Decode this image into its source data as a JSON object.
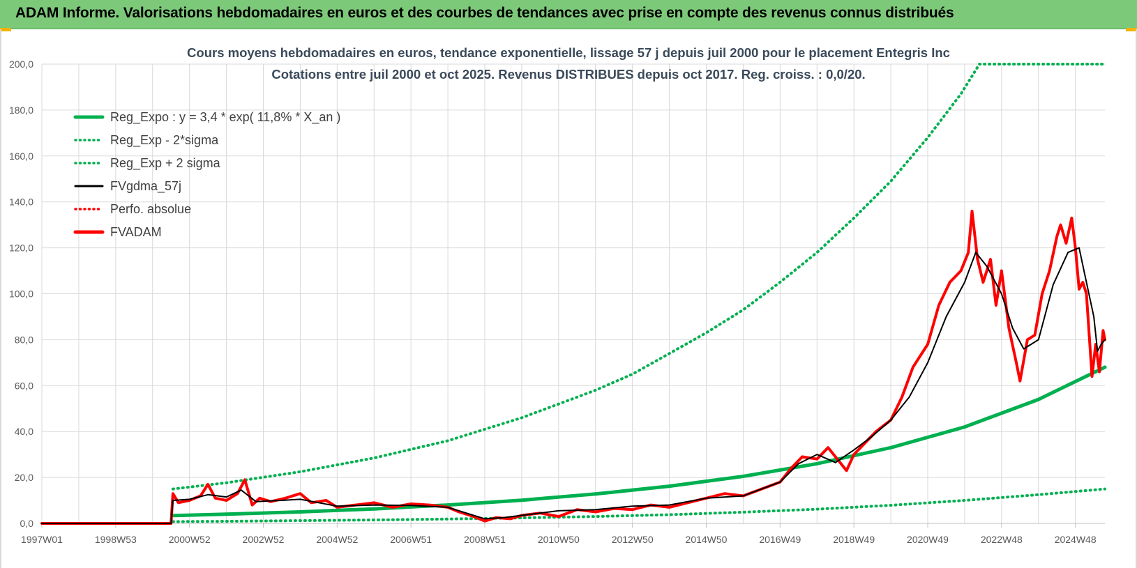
{
  "header": {
    "title": "ADAM Informe. Valorisations hebdomadaires en euros et des courbes de tendances avec prise en compte des revenus connus distribués"
  },
  "colors": {
    "banner": "#7dc97a",
    "reg_green": "#00b050",
    "price_red": "#ff0000",
    "avg_black": "#000000",
    "grid": "#d9d9d9",
    "corner_accent": "#f2b200"
  },
  "chart_data": {
    "type": "line",
    "title": "Cours moyens hebdomadaires en euros, tendance exponentielle, lissage 57 j depuis juil 2000 pour le placement Entegris Inc",
    "subtitle": "Cotations entre juil 2000 et oct 2025. Revenus DISTRIBUES depuis oct 2017. Reg. croiss. : 0,0/20.",
    "xlabel": "",
    "ylabel": "",
    "ylim": [
      0,
      200
    ],
    "yticks": [
      "0,0",
      "20,0",
      "40,0",
      "60,0",
      "80,0",
      "100,0",
      "120,0",
      "140,0",
      "160,0",
      "180,0",
      "200,0"
    ],
    "xlim": [
      1997.0,
      2025.8
    ],
    "xticks": [
      {
        "label": "1997W01",
        "x": 1997.0
      },
      {
        "label": "1998W53",
        "x": 1999.0
      },
      {
        "label": "2000W52",
        "x": 2001.0
      },
      {
        "label": "2002W52",
        "x": 2003.0
      },
      {
        "label": "2004W52",
        "x": 2005.0
      },
      {
        "label": "2006W51",
        "x": 2007.0
      },
      {
        "label": "2008W51",
        "x": 2009.0
      },
      {
        "label": "2010W50",
        "x": 2011.0
      },
      {
        "label": "2012W50",
        "x": 2013.0
      },
      {
        "label": "2014W50",
        "x": 2015.0
      },
      {
        "label": "2016W49",
        "x": 2017.0
      },
      {
        "label": "2018W49",
        "x": 2019.0
      },
      {
        "label": "2020W49",
        "x": 2021.0
      },
      {
        "label": "2022W48",
        "x": 2023.0
      },
      {
        "label": "2024W48",
        "x": 2025.0
      }
    ],
    "grid": true,
    "legend_position": "top-left",
    "series": [
      {
        "name": "Reg_Expo : y = 3,4 * exp( 11,8% *  X_an )",
        "style": "solid-thick",
        "color": "#00b050",
        "points": [
          [
            2000.55,
            3.4
          ],
          [
            2002.0,
            4.0
          ],
          [
            2004.0,
            5.0
          ],
          [
            2006.0,
            6.3
          ],
          [
            2008.0,
            8.0
          ],
          [
            2010.0,
            10.1
          ],
          [
            2012.0,
            12.8
          ],
          [
            2014.0,
            16.2
          ],
          [
            2016.0,
            20.5
          ],
          [
            2018.0,
            26.0
          ],
          [
            2020.0,
            33.0
          ],
          [
            2022.0,
            42.0
          ],
          [
            2024.0,
            54.0
          ],
          [
            2025.8,
            68.0
          ]
        ]
      },
      {
        "name": "Reg_Exp - 2*sigma",
        "style": "dotted",
        "color": "#00b050",
        "points": [
          [
            2000.55,
            0.8
          ],
          [
            2002.0,
            0.9
          ],
          [
            2004.0,
            1.2
          ],
          [
            2006.0,
            1.5
          ],
          [
            2008.0,
            1.9
          ],
          [
            2010.0,
            2.4
          ],
          [
            2012.0,
            3.0
          ],
          [
            2014.0,
            3.8
          ],
          [
            2016.0,
            4.9
          ],
          [
            2018.0,
            6.2
          ],
          [
            2020.0,
            7.9
          ],
          [
            2022.0,
            10.0
          ],
          [
            2024.0,
            12.5
          ],
          [
            2025.8,
            15.0
          ]
        ]
      },
      {
        "name": "Reg_Exp + 2 sigma",
        "style": "dotted",
        "color": "#00b050",
        "points": [
          [
            2000.55,
            15.0
          ],
          [
            2002.0,
            17.7
          ],
          [
            2004.0,
            22.5
          ],
          [
            2006.0,
            28.5
          ],
          [
            2008.0,
            36.0
          ],
          [
            2009.0,
            41.0
          ],
          [
            2010.0,
            46.0
          ],
          [
            2011.0,
            52.0
          ],
          [
            2012.0,
            58.0
          ],
          [
            2013.0,
            65.0
          ],
          [
            2014.0,
            74.0
          ],
          [
            2015.0,
            83.0
          ],
          [
            2016.0,
            93.0
          ],
          [
            2017.0,
            105.0
          ],
          [
            2018.0,
            118.0
          ],
          [
            2019.0,
            133.0
          ],
          [
            2020.0,
            149.0
          ],
          [
            2021.0,
            168.0
          ],
          [
            2021.9,
            187.0
          ],
          [
            2022.4,
            200.0
          ],
          [
            2025.8,
            200.0
          ]
        ]
      },
      {
        "name": "FVgdma_57j",
        "style": "solid",
        "color": "#000000",
        "points": [
          [
            1997.0,
            0.0
          ],
          [
            2000.5,
            0.0
          ],
          [
            2000.55,
            10.0
          ],
          [
            2001.0,
            10.5
          ],
          [
            2001.5,
            12.5
          ],
          [
            2002.0,
            11.5
          ],
          [
            2002.4,
            14.5
          ],
          [
            2002.8,
            9.5
          ],
          [
            2003.5,
            10.0
          ],
          [
            2004.0,
            10.5
          ],
          [
            2004.5,
            9.0
          ],
          [
            2005.0,
            7.5
          ],
          [
            2006.0,
            8.0
          ],
          [
            2007.0,
            7.8
          ],
          [
            2008.0,
            7.0
          ],
          [
            2008.5,
            4.5
          ],
          [
            2009.0,
            2.0
          ],
          [
            2009.5,
            2.5
          ],
          [
            2010.0,
            3.5
          ],
          [
            2011.0,
            5.5
          ],
          [
            2012.0,
            6.0
          ],
          [
            2013.0,
            7.5
          ],
          [
            2014.0,
            8.0
          ],
          [
            2015.0,
            11.0
          ],
          [
            2016.0,
            12.0
          ],
          [
            2017.0,
            18.0
          ],
          [
            2017.5,
            26.0
          ],
          [
            2018.0,
            30.0
          ],
          [
            2018.5,
            26.5
          ],
          [
            2019.0,
            32.0
          ],
          [
            2019.5,
            38.0
          ],
          [
            2020.0,
            45.0
          ],
          [
            2020.5,
            55.0
          ],
          [
            2021.0,
            70.0
          ],
          [
            2021.5,
            90.0
          ],
          [
            2022.0,
            105.0
          ],
          [
            2022.3,
            118.0
          ],
          [
            2022.6,
            112.0
          ],
          [
            2023.0,
            100.0
          ],
          [
            2023.3,
            85.0
          ],
          [
            2023.6,
            76.0
          ],
          [
            2024.0,
            80.0
          ],
          [
            2024.4,
            104.0
          ],
          [
            2024.8,
            118.0
          ],
          [
            2025.1,
            120.0
          ],
          [
            2025.3,
            105.0
          ],
          [
            2025.5,
            90.0
          ],
          [
            2025.6,
            75.0
          ],
          [
            2025.7,
            78.0
          ],
          [
            2025.8,
            80.0
          ]
        ]
      },
      {
        "name": "Perfo. absolue",
        "style": "dotted",
        "color": "#ff0000",
        "points": []
      },
      {
        "name": "FVADAM",
        "style": "solid-thick",
        "color": "#ff0000",
        "points": [
          [
            1997.0,
            0.0
          ],
          [
            2000.5,
            0.0
          ],
          [
            2000.55,
            13.0
          ],
          [
            2000.7,
            9.0
          ],
          [
            2001.0,
            10.0
          ],
          [
            2001.3,
            12.0
          ],
          [
            2001.5,
            17.0
          ],
          [
            2001.7,
            11.0
          ],
          [
            2002.0,
            10.0
          ],
          [
            2002.3,
            13.0
          ],
          [
            2002.5,
            19.0
          ],
          [
            2002.7,
            8.0
          ],
          [
            2002.9,
            11.0
          ],
          [
            2003.2,
            9.5
          ],
          [
            2003.6,
            11.0
          ],
          [
            2004.0,
            13.0
          ],
          [
            2004.3,
            9.0
          ],
          [
            2004.7,
            10.0
          ],
          [
            2005.0,
            7.0
          ],
          [
            2005.5,
            8.0
          ],
          [
            2006.0,
            9.0
          ],
          [
            2006.5,
            7.0
          ],
          [
            2007.0,
            8.5
          ],
          [
            2007.5,
            8.0
          ],
          [
            2008.0,
            7.0
          ],
          [
            2008.3,
            5.0
          ],
          [
            2008.7,
            3.0
          ],
          [
            2009.0,
            1.0
          ],
          [
            2009.3,
            2.5
          ],
          [
            2009.7,
            2.0
          ],
          [
            2010.0,
            3.5
          ],
          [
            2010.5,
            4.5
          ],
          [
            2011.0,
            3.0
          ],
          [
            2011.5,
            6.0
          ],
          [
            2012.0,
            5.0
          ],
          [
            2012.5,
            6.5
          ],
          [
            2013.0,
            6.0
          ],
          [
            2013.5,
            8.0
          ],
          [
            2014.0,
            7.0
          ],
          [
            2014.5,
            9.0
          ],
          [
            2015.0,
            11.0
          ],
          [
            2015.5,
            13.0
          ],
          [
            2016.0,
            12.0
          ],
          [
            2016.5,
            15.0
          ],
          [
            2017.0,
            18.0
          ],
          [
            2017.3,
            24.0
          ],
          [
            2017.6,
            29.0
          ],
          [
            2018.0,
            28.0
          ],
          [
            2018.3,
            33.0
          ],
          [
            2018.6,
            27.0
          ],
          [
            2018.8,
            23.0
          ],
          [
            2019.0,
            30.0
          ],
          [
            2019.3,
            35.0
          ],
          [
            2019.6,
            40.0
          ],
          [
            2020.0,
            45.0
          ],
          [
            2020.3,
            55.0
          ],
          [
            2020.6,
            68.0
          ],
          [
            2021.0,
            78.0
          ],
          [
            2021.3,
            95.0
          ],
          [
            2021.6,
            105.0
          ],
          [
            2021.9,
            110.0
          ],
          [
            2022.1,
            118.0
          ],
          [
            2022.2,
            136.0
          ],
          [
            2022.35,
            115.0
          ],
          [
            2022.5,
            105.0
          ],
          [
            2022.7,
            115.0
          ],
          [
            2022.85,
            95.0
          ],
          [
            2023.0,
            110.0
          ],
          [
            2023.2,
            85.0
          ],
          [
            2023.4,
            70.0
          ],
          [
            2023.5,
            62.0
          ],
          [
            2023.7,
            80.0
          ],
          [
            2023.9,
            82.0
          ],
          [
            2024.1,
            100.0
          ],
          [
            2024.3,
            110.0
          ],
          [
            2024.5,
            125.0
          ],
          [
            2024.6,
            130.0
          ],
          [
            2024.75,
            122.0
          ],
          [
            2024.9,
            133.0
          ],
          [
            2025.0,
            120.0
          ],
          [
            2025.1,
            102.0
          ],
          [
            2025.2,
            105.0
          ],
          [
            2025.3,
            100.0
          ],
          [
            2025.45,
            64.0
          ],
          [
            2025.55,
            78.0
          ],
          [
            2025.65,
            66.0
          ],
          [
            2025.75,
            84.0
          ],
          [
            2025.8,
            80.0
          ]
        ]
      }
    ]
  }
}
